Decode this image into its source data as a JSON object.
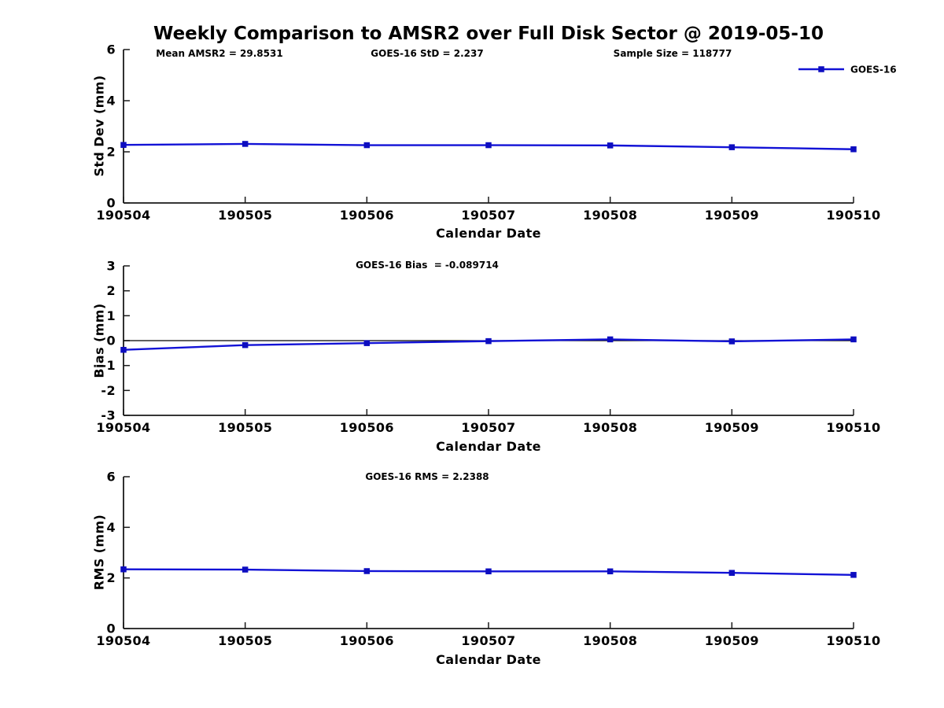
{
  "figure": {
    "title": "Weekly Comparison to AMSR2 over Full Disk Sector @ 2019-05-10",
    "background": "#ffffff"
  },
  "colors": {
    "line": "#1212d6",
    "marker": "#0d0dc0",
    "axis": "#1a1a1a",
    "zero_line": "#000000",
    "text": "#000000"
  },
  "chart_data": [
    {
      "id": "std-dev",
      "type": "line",
      "ylabel": "Std Dev (mm)",
      "xlabel": "Calendar Date",
      "ylim": [
        0,
        6
      ],
      "yticks": [
        0,
        2,
        4,
        6
      ],
      "zero_line": false,
      "categories": [
        "190504",
        "190505",
        "190506",
        "190507",
        "190508",
        "190509",
        "190510"
      ],
      "series": [
        {
          "name": "GOES-16",
          "values": [
            2.27,
            2.31,
            2.26,
            2.26,
            2.25,
            2.18,
            2.1
          ]
        }
      ],
      "annotations": [
        {
          "text": "Mean AMSR2 = 29.8531"
        },
        {
          "text": "GOES-16 StD = 2.237"
        },
        {
          "text": "Sample Size = 118777"
        }
      ],
      "legend": {
        "label": "GOES-16",
        "visible": true,
        "position": "top-right"
      },
      "grid": false
    },
    {
      "id": "bias",
      "type": "line",
      "ylabel": "Bias (mm)",
      "xlabel": "Calendar Date",
      "ylim": [
        -3,
        3
      ],
      "yticks": [
        -3,
        -2,
        -1,
        0,
        1,
        2,
        3
      ],
      "zero_line": true,
      "categories": [
        "190504",
        "190505",
        "190506",
        "190507",
        "190508",
        "190509",
        "190510"
      ],
      "series": [
        {
          "name": "GOES-16",
          "values": [
            -0.37,
            -0.18,
            -0.1,
            -0.02,
            0.05,
            -0.03,
            0.05
          ]
        }
      ],
      "annotations": [
        {
          "text": "GOES-16 Bias  = -0.089714"
        }
      ],
      "legend": {
        "label": "GOES-16",
        "visible": false,
        "position": "top-right"
      },
      "grid": false
    },
    {
      "id": "rms",
      "type": "line",
      "ylabel": "RMS (mm)",
      "xlabel": "Calendar Date",
      "ylim": [
        0,
        6
      ],
      "yticks": [
        0,
        2,
        4,
        6
      ],
      "zero_line": false,
      "categories": [
        "190504",
        "190505",
        "190506",
        "190507",
        "190508",
        "190509",
        "190510"
      ],
      "series": [
        {
          "name": "GOES-16",
          "values": [
            2.34,
            2.33,
            2.27,
            2.26,
            2.26,
            2.2,
            2.12
          ]
        }
      ],
      "annotations": [
        {
          "text": "GOES-16 RMS = 2.2388"
        }
      ],
      "legend": {
        "label": "GOES-16",
        "visible": false,
        "position": "top-right"
      },
      "grid": false
    }
  ]
}
